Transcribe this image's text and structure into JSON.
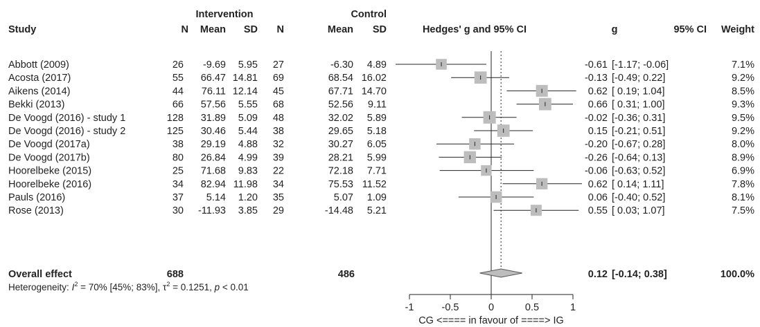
{
  "header": {
    "group_intervention": "Intervention",
    "group_control": "Control",
    "study": "Study",
    "n": "N",
    "mean": "Mean",
    "sd": "SD",
    "n2": "N",
    "mean2": "Mean",
    "sd2": "SD",
    "plot_title": "Hedges' g and 95% CI",
    "g": "g",
    "ci": "95% CI",
    "weight": "Weight"
  },
  "chart_data": {
    "type": "forest",
    "xlabel": "CG <==== in favour of ====> IG",
    "xlim": [
      -1,
      1
    ],
    "xticks": [
      -1,
      -0.5,
      0,
      0.5,
      1
    ],
    "xtick_labels": [
      "-1",
      "-0.5",
      "0",
      "0.5",
      "1"
    ],
    "reference_line": 0,
    "pooled_line": 0.12,
    "studies": [
      {
        "study": "Abbott (2009)",
        "n1": "26",
        "mean1": "-9.69",
        "sd1": "5.95",
        "n2": "27",
        "mean2": "-6.30",
        "sd2": "4.89",
        "g": -0.61,
        "lo": -1.17,
        "hi": -0.06,
        "g_label": "-0.61",
        "ci_label": "[-1.17; -0.06]",
        "weight": 7.1,
        "weight_label": "7.1%"
      },
      {
        "study": "Acosta (2017)",
        "n1": "55",
        "mean1": "66.47",
        "sd1": "14.81",
        "n2": "69",
        "mean2": "68.54",
        "sd2": "16.02",
        "g": -0.13,
        "lo": -0.49,
        "hi": 0.22,
        "g_label": "-0.13",
        "ci_label": "[-0.49; 0.22]",
        "weight": 9.2,
        "weight_label": "9.2%"
      },
      {
        "study": "Aikens (2014)",
        "n1": "44",
        "mean1": "76.11",
        "sd1": "12.14",
        "n2": "45",
        "mean2": "67.71",
        "sd2": "14.70",
        "g": 0.62,
        "lo": 0.19,
        "hi": 1.04,
        "g_label": "0.62",
        "ci_label": "[ 0.19; 1.04]",
        "weight": 8.5,
        "weight_label": "8.5%"
      },
      {
        "study": "Bekki (2013)",
        "n1": "66",
        "mean1": "57.56",
        "sd1": "5.55",
        "n2": "68",
        "mean2": "52.56",
        "sd2": "9.11",
        "g": 0.66,
        "lo": 0.31,
        "hi": 1.0,
        "g_label": "0.66",
        "ci_label": "[ 0.31; 1.00]",
        "weight": 9.3,
        "weight_label": "9.3%"
      },
      {
        "study": "De Voogd (2016) - study 1",
        "n1": "128",
        "mean1": "31.89",
        "sd1": "5.09",
        "n2": "48",
        "mean2": "32.02",
        "sd2": "5.89",
        "g": -0.02,
        "lo": -0.36,
        "hi": 0.31,
        "g_label": "-0.02",
        "ci_label": "[-0.36; 0.31]",
        "weight": 9.5,
        "weight_label": "9.5%"
      },
      {
        "study": "De Voogd (2016) - study 2",
        "n1": "125",
        "mean1": "30.46",
        "sd1": "5.44",
        "n2": "38",
        "mean2": "29.65",
        "sd2": "5.18",
        "g": 0.15,
        "lo": -0.21,
        "hi": 0.51,
        "g_label": "0.15",
        "ci_label": "[-0.21; 0.51]",
        "weight": 9.2,
        "weight_label": "9.2%"
      },
      {
        "study": "De Voogd (2017a)",
        "n1": "38",
        "mean1": "29.19",
        "sd1": "4.88",
        "n2": "32",
        "mean2": "30.27",
        "sd2": "6.05",
        "g": -0.2,
        "lo": -0.67,
        "hi": 0.28,
        "g_label": "-0.20",
        "ci_label": "[-0.67; 0.28]",
        "weight": 8.0,
        "weight_label": "8.0%"
      },
      {
        "study": "De Voogd (2017b)",
        "n1": "80",
        "mean1": "26.84",
        "sd1": "4.99",
        "n2": "39",
        "mean2": "28.21",
        "sd2": "5.99",
        "g": -0.26,
        "lo": -0.64,
        "hi": 0.13,
        "g_label": "-0.26",
        "ci_label": "[-0.64; 0.13]",
        "weight": 8.9,
        "weight_label": "8.9%"
      },
      {
        "study": "Hoorelbeke (2015)",
        "n1": "25",
        "mean1": "71.68",
        "sd1": "9.83",
        "n2": "22",
        "mean2": "72.18",
        "sd2": "7.71",
        "g": -0.06,
        "lo": -0.63,
        "hi": 0.52,
        "g_label": "-0.06",
        "ci_label": "[-0.63; 0.52]",
        "weight": 6.9,
        "weight_label": "6.9%"
      },
      {
        "study": "Hoorelbeke (2016)",
        "n1": "34",
        "mean1": "82.94",
        "sd1": "11.98",
        "n2": "34",
        "mean2": "75.53",
        "sd2": "11.52",
        "g": 0.62,
        "lo": 0.14,
        "hi": 1.11,
        "g_label": "0.62",
        "ci_label": "[ 0.14; 1.11]",
        "weight": 7.8,
        "weight_label": "7.8%"
      },
      {
        "study": "Pauls (2016)",
        "n1": "37",
        "mean1": "5.14",
        "sd1": "1.20",
        "n2": "35",
        "mean2": "5.07",
        "sd2": "1.09",
        "g": 0.06,
        "lo": -0.4,
        "hi": 0.52,
        "g_label": "0.06",
        "ci_label": "[-0.40; 0.52]",
        "weight": 8.1,
        "weight_label": "8.1%"
      },
      {
        "study": "Rose (2013)",
        "n1": "30",
        "mean1": "-11.93",
        "sd1": "3.85",
        "n2": "29",
        "mean2": "-14.48",
        "sd2": "5.21",
        "g": 0.55,
        "lo": 0.03,
        "hi": 1.07,
        "g_label": "0.55",
        "ci_label": "[ 0.03; 1.07]",
        "weight": 7.5,
        "weight_label": "7.5%"
      }
    ],
    "overall": {
      "label": "Overall effect",
      "n1": "688",
      "n2": "486",
      "g": 0.12,
      "lo": -0.14,
      "hi": 0.38,
      "g_label": "0.12",
      "ci_label": "[-0.14; 0.38]",
      "weight_label": "100.0%"
    },
    "heterogeneity": {
      "prefix": "Heterogeneity: ",
      "i2_symbol": "I",
      "i2_part": " = 70% [45%; 83%], ",
      "tau_symbol": "τ",
      "tau_part": " = 0.1251, ",
      "p_symbol": "p",
      "p_part": " < 0.01"
    },
    "colors": {
      "box": "#bdbdbd",
      "diamond": "#bdbdbd",
      "line": "#222222"
    }
  }
}
